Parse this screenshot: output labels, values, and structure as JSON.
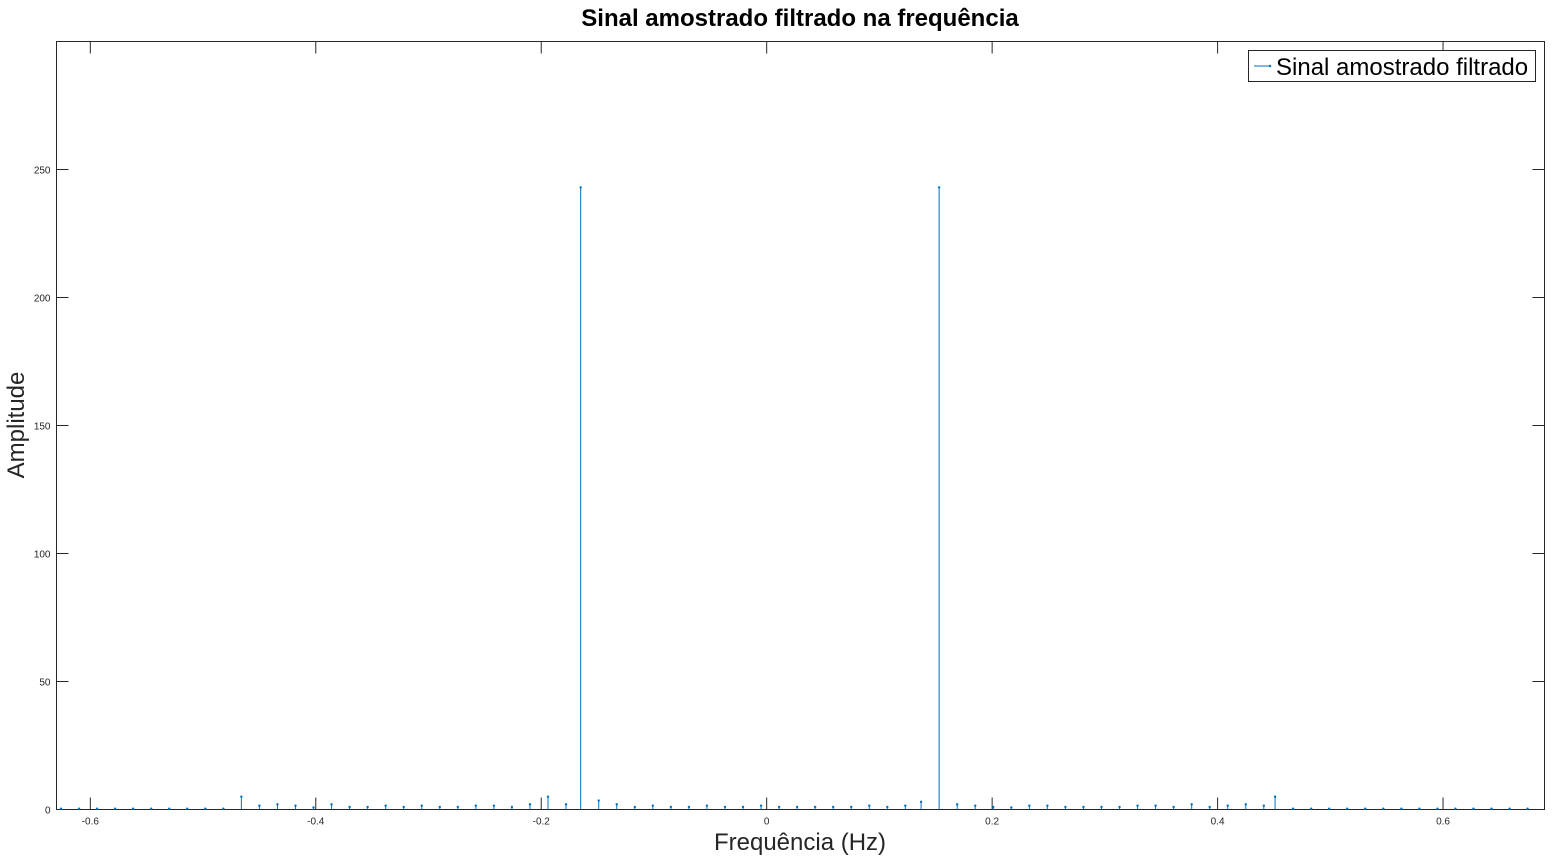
{
  "chart_data": {
    "type": "stem",
    "title": "Sinal amostrado filtrado na frequência",
    "xlabel": "Frequência (Hz)",
    "ylabel": "Amplitude",
    "xlim": [
      -0.63,
      0.69
    ],
    "ylim": [
      0,
      300
    ],
    "xticks": [
      -0.6,
      -0.4,
      -0.2,
      0,
      0.2,
      0.4,
      0.6
    ],
    "xtick_labels": [
      "-0.6",
      "-0.4",
      "-0.2",
      "0",
      "0.2",
      "0.4",
      "0.6"
    ],
    "yticks": [
      0,
      50,
      100,
      150,
      200,
      250
    ],
    "ytick_labels": [
      "0",
      "50",
      "100",
      "150",
      "200",
      "250"
    ],
    "grid": false,
    "legend_position": "top-right",
    "series": [
      {
        "name": "Sinal amostrado filtrado",
        "color": "#0072BD",
        "x": [
          -0.626,
          -0.61,
          -0.594,
          -0.578,
          -0.562,
          -0.546,
          -0.53,
          -0.514,
          -0.498,
          -0.482,
          -0.466,
          -0.45,
          -0.434,
          -0.418,
          -0.402,
          -0.386,
          -0.37,
          -0.354,
          -0.338,
          -0.322,
          -0.306,
          -0.29,
          -0.274,
          -0.258,
          -0.242,
          -0.226,
          -0.21,
          -0.194,
          -0.178,
          -0.165,
          -0.149,
          -0.133,
          -0.117,
          -0.101,
          -0.085,
          -0.069,
          -0.053,
          -0.037,
          -0.021,
          -0.005,
          0.011,
          0.027,
          0.043,
          0.059,
          0.075,
          0.091,
          0.107,
          0.123,
          0.137,
          0.153,
          0.169,
          0.185,
          0.201,
          0.217,
          0.233,
          0.249,
          0.265,
          0.281,
          0.297,
          0.313,
          0.329,
          0.345,
          0.361,
          0.377,
          0.393,
          0.409,
          0.425,
          0.441,
          0.451,
          0.467,
          0.483,
          0.499,
          0.515,
          0.531,
          0.547,
          0.563,
          0.579,
          0.595,
          0.611,
          0.627,
          0.643,
          0.659,
          0.675
        ],
        "values": [
          0.3,
          0.3,
          0.3,
          0.3,
          0.3,
          0.3,
          0.3,
          0.3,
          0.3,
          0.3,
          5,
          1.5,
          2,
          1.5,
          0.8,
          2,
          1,
          1,
          1.5,
          1,
          1.5,
          1,
          1,
          1.5,
          1.5,
          1,
          2,
          5,
          2,
          243,
          3.5,
          2,
          1,
          1.5,
          1,
          1,
          1.5,
          1,
          1,
          1.5,
          1,
          1,
          1,
          1,
          1,
          1.5,
          1,
          1.5,
          3,
          243,
          2,
          1.5,
          1,
          0.8,
          1.5,
          1.5,
          1,
          1,
          1,
          1,
          1.5,
          1.5,
          1,
          2,
          1,
          1.5,
          2,
          1.5,
          5,
          0.3,
          0.3,
          0.3,
          0.3,
          0.3,
          0.3,
          0.3,
          0.3,
          0.3,
          0.3,
          0.3,
          0.3,
          0.3,
          0.3
        ]
      }
    ]
  }
}
